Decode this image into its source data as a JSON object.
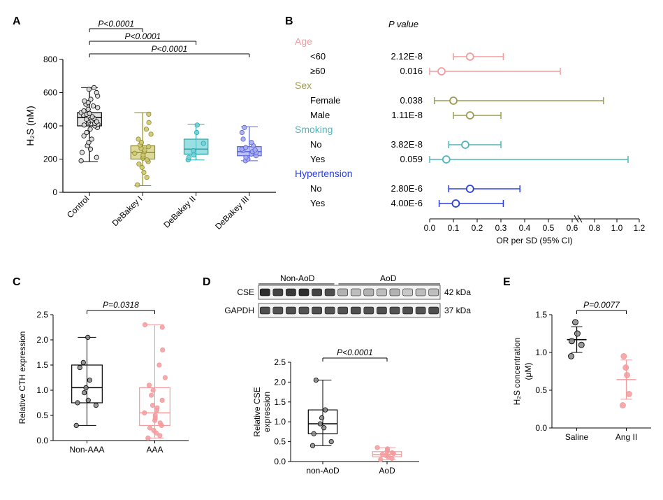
{
  "panels": {
    "A": "A",
    "B": "B",
    "C": "C",
    "D": "D",
    "E": "E"
  },
  "colors": {
    "control": {
      "fill": "#d9d9d9",
      "stroke": "#000000"
    },
    "debakey1": {
      "fill": "#cfc96e",
      "stroke": "#8e8a3a"
    },
    "debakey2": {
      "fill": "#6fd1d6",
      "stroke": "#2aa6ad"
    },
    "debakey3": {
      "fill": "#a7abef",
      "stroke": "#5661d8"
    },
    "age": "#f39b9e",
    "sex": "#9f9a52",
    "smoking": "#4fb6bb",
    "htn": "#2b3fe0",
    "nonAAA": {
      "fill": "none",
      "stroke": "#000000",
      "dot": "#888888"
    },
    "AAA": {
      "fill": "none",
      "stroke": "#f39b9e",
      "dot": "#f39b9e"
    },
    "nonAoD": {
      "stroke": "#000000",
      "dot": "#888888"
    },
    "AoD": {
      "stroke": "#f39b9e",
      "dot": "#f39b9e"
    },
    "saline": {
      "stroke": "#000000",
      "dot": "#888888"
    },
    "angII": {
      "stroke": "#f39b9e",
      "dot": "#f39b9e"
    }
  },
  "panelA": {
    "ylabel": "H₂S (nM)",
    "ylim": [
      0,
      800
    ],
    "ytick_step": 200,
    "groups": [
      "Control",
      "DeBakey I",
      "DeBakey II",
      "DeBakey III"
    ],
    "box": {
      "Control": {
        "min": 185,
        "q1": 400,
        "med": 450,
        "q3": 480,
        "max": 630,
        "color": "control"
      },
      "DeBakey I": {
        "min": 40,
        "q1": 200,
        "med": 240,
        "q3": 280,
        "max": 480,
        "color": "debakey1"
      },
      "DeBakey II": {
        "min": 195,
        "q1": 230,
        "med": 260,
        "q3": 320,
        "max": 410,
        "color": "debakey2"
      },
      "DeBakey III": {
        "min": 190,
        "q1": 220,
        "med": 245,
        "q3": 275,
        "max": 395,
        "color": "debakey3"
      }
    },
    "points": {
      "Control": [
        190,
        210,
        240,
        260,
        280,
        300,
        320,
        340,
        360,
        380,
        390,
        400,
        405,
        410,
        415,
        420,
        425,
        430,
        435,
        440,
        445,
        450,
        455,
        460,
        465,
        470,
        475,
        480,
        490,
        500,
        510,
        520,
        530,
        540,
        550,
        560,
        580,
        600,
        620,
        630
      ],
      "DeBakey I": [
        45,
        90,
        120,
        150,
        170,
        185,
        195,
        205,
        215,
        225,
        235,
        245,
        255,
        265,
        275,
        285,
        300,
        320,
        350,
        380,
        420,
        470
      ],
      "DeBakey II": [
        195,
        210,
        225,
        250,
        295,
        360,
        405
      ],
      "DeBakey III": [
        190,
        200,
        210,
        220,
        230,
        240,
        245,
        250,
        255,
        260,
        270,
        280,
        300,
        320,
        360,
        390
      ]
    },
    "pvals": [
      {
        "from": 0,
        "to": 1,
        "label": "P<0.0001"
      },
      {
        "from": 0,
        "to": 2,
        "label": "P<0.0001"
      },
      {
        "from": 0,
        "to": 3,
        "label": "P<0.0001"
      }
    ]
  },
  "panelB": {
    "headers": {
      "p": "P value"
    },
    "xlabel": "OR per SD (95% CI)",
    "xbreaks_major": [
      0.0,
      0.1,
      0.2,
      0.3,
      0.4,
      0.5,
      0.6
    ],
    "xbreaks_after": [
      0.6,
      0.8,
      1.0,
      1.2
    ],
    "groups": [
      {
        "cat": "Age",
        "color": "age",
        "rows": [
          {
            "label": "<60",
            "p": "2.12E-8",
            "or": 0.17,
            "lo": 0.1,
            "hi": 0.31
          },
          {
            "label": "≥60",
            "p": "0.016",
            "or": 0.05,
            "lo": 0.0,
            "hi": 0.55
          }
        ]
      },
      {
        "cat": "Sex",
        "color": "sex",
        "rows": [
          {
            "label": "Female",
            "p": "0.038",
            "or": 0.1,
            "lo": 0.02,
            "hi": 0.88
          },
          {
            "label": "Male",
            "p": "1.11E-8",
            "or": 0.17,
            "lo": 0.1,
            "hi": 0.3
          }
        ]
      },
      {
        "cat": "Smoking",
        "color": "smoking",
        "rows": [
          {
            "label": "No",
            "p": "3.82E-8",
            "or": 0.15,
            "lo": 0.08,
            "hi": 0.3
          },
          {
            "label": "Yes",
            "p": "0.059",
            "or": 0.07,
            "lo": 0.0,
            "hi": 1.1
          }
        ]
      },
      {
        "cat": "Hypertension",
        "color": "htn",
        "rows": [
          {
            "label": "No",
            "p": "2.80E-6",
            "or": 0.17,
            "lo": 0.08,
            "hi": 0.38
          },
          {
            "label": "Yes",
            "p": "4.00E-6",
            "or": 0.11,
            "lo": 0.04,
            "hi": 0.31
          }
        ]
      }
    ]
  },
  "panelC": {
    "ylabel": "Relative CTH expression",
    "ylim": [
      0.0,
      2.5
    ],
    "ytick_step": 0.5,
    "groups": [
      "Non-AAA",
      "AAA"
    ],
    "box": {
      "Non-AAA": {
        "min": 0.3,
        "q1": 0.75,
        "med": 1.05,
        "q3": 1.5,
        "max": 2.05,
        "colorKey": "nonAAA"
      },
      "AAA": {
        "min": 0.05,
        "q1": 0.3,
        "med": 0.55,
        "q3": 1.05,
        "max": 2.3,
        "colorKey": "AAA"
      }
    },
    "points": {
      "Non-AAA": [
        0.3,
        0.7,
        0.75,
        0.8,
        0.95,
        1.05,
        1.2,
        1.45,
        1.55,
        2.05
      ],
      "AAA": [
        0.05,
        0.1,
        0.15,
        0.2,
        0.25,
        0.3,
        0.35,
        0.4,
        0.45,
        0.5,
        0.55,
        0.6,
        0.65,
        0.7,
        0.8,
        0.9,
        1.0,
        1.1,
        1.25,
        1.5,
        1.8,
        2.25,
        2.3
      ]
    },
    "pval": "P=0.0318"
  },
  "panelD": {
    "blot": {
      "groups": [
        "Non-AoD",
        "AoD"
      ],
      "rows": [
        {
          "name": "CSE",
          "kda": "42 kDa",
          "intens": [
            0.95,
            0.85,
            0.9,
            0.95,
            0.85,
            0.8,
            0.35,
            0.3,
            0.35,
            0.3,
            0.35,
            0.25,
            0.3,
            0.3
          ]
        },
        {
          "name": "GAPDH",
          "kda": "37 kDa",
          "intens": [
            0.8,
            0.78,
            0.8,
            0.78,
            0.8,
            0.78,
            0.78,
            0.8,
            0.78,
            0.8,
            0.78,
            0.8,
            0.78,
            0.8
          ]
        }
      ],
      "split": 6
    },
    "plot": {
      "ylabel": "Relative CSE expression",
      "ylim": [
        0.0,
        2.5
      ],
      "ytick_step": 0.5,
      "groups": [
        "non-AoD",
        "AoD"
      ],
      "box": {
        "non-AoD": {
          "min": 0.4,
          "q1": 0.7,
          "med": 0.95,
          "q3": 1.3,
          "max": 2.05,
          "colorKey": "nonAoD"
        },
        "AoD": {
          "min": 0.05,
          "q1": 0.12,
          "med": 0.18,
          "q3": 0.25,
          "max": 0.35,
          "colorKey": "AoD"
        }
      },
      "points": {
        "non-AoD": [
          0.4,
          0.5,
          0.7,
          0.85,
          0.95,
          1.1,
          1.3,
          2.05
        ],
        "AoD": [
          0.05,
          0.08,
          0.12,
          0.15,
          0.18,
          0.2,
          0.22,
          0.25,
          0.28,
          0.32,
          0.35
        ]
      },
      "pval": "P<0.0001"
    }
  },
  "panelE": {
    "ylabel": "H₂S concentration (μM)",
    "ylim": [
      0.0,
      1.5
    ],
    "ytick_step": 0.5,
    "groups": [
      "Saline",
      "Ang II"
    ],
    "series": {
      "Saline": {
        "points": [
          0.95,
          1.1,
          1.15,
          1.25,
          1.4
        ],
        "mean": 1.17,
        "sd": 0.17,
        "colorKey": "saline"
      },
      "Ang II": {
        "points": [
          0.3,
          0.45,
          0.7,
          0.8,
          0.95
        ],
        "mean": 0.64,
        "sd": 0.26,
        "colorKey": "angII"
      }
    },
    "pval": "P=0.0077"
  }
}
